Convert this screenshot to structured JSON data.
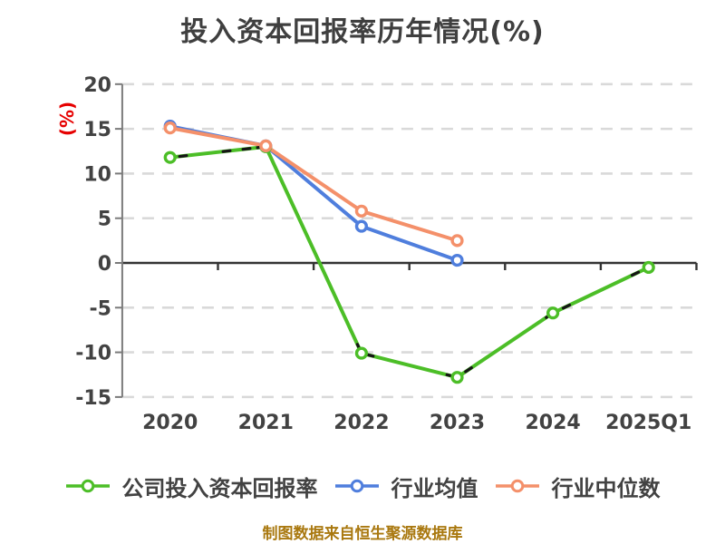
{
  "chart_data": {
    "type": "line",
    "title": "投入资本回报率历年情况(%)",
    "ylabel": "(%)",
    "xlabel": "",
    "categories": [
      "2020",
      "2021",
      "2022",
      "2023",
      "2024",
      "2025Q1"
    ],
    "y_ticks": [
      20,
      15,
      10,
      5,
      0,
      -5,
      -10,
      -15
    ],
    "ylim": [
      -15,
      20
    ],
    "grid": "horizontal-dashed",
    "legend_position": "bottom",
    "series": [
      {
        "key": "company-roic",
        "name": "公司投入资本回报率",
        "color": "#4CBE27",
        "values": [
          11.8,
          13.0,
          -10.1,
          -12.8,
          -5.6,
          -0.5
        ]
      },
      {
        "key": "industry-mean",
        "name": "行业均值",
        "color": "#4F7EDD",
        "values": [
          15.3,
          13.1,
          4.1,
          0.3,
          null,
          null
        ]
      },
      {
        "key": "industry-median",
        "name": "行业中位数",
        "color": "#F4906A",
        "values": [
          15.1,
          13.1,
          5.8,
          2.5,
          null,
          null
        ]
      }
    ]
  },
  "footer": "制图数据来自恒生聚源数据库",
  "colors": {
    "grid": "#D9D9D9",
    "zero_axis": "#333333",
    "y_axis": "#7A7A7A",
    "tick_text": "#424242",
    "title_text": "#3F3F3F",
    "ylabel_text": "#E60000",
    "footer_text": "#A9780F",
    "marker_fill": "#FFFFFF",
    "line_decoration": "#151515"
  }
}
